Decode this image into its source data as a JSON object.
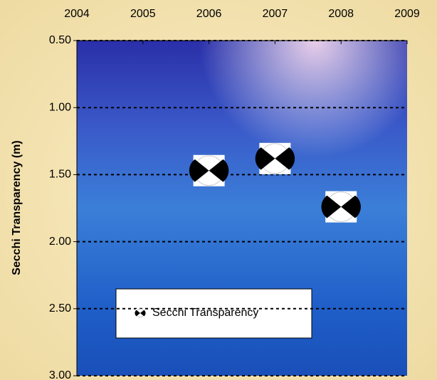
{
  "chart_data": {
    "type": "scatter",
    "y_label": "Secchi Transparency (m)",
    "series": [
      {
        "name": "Secchi Transparency",
        "color": "#000000",
        "x": [
          2006,
          2007,
          2008
        ],
        "values": [
          1.47,
          1.38,
          1.74
        ]
      }
    ],
    "xlim": [
      2004,
      2009
    ],
    "xticks": [
      2004,
      2005,
      2006,
      2007,
      2008,
      2009
    ],
    "x_axis_position": "top",
    "ylim": [
      0.5,
      3.0
    ],
    "y_inverted": true,
    "yticks": [
      {
        "value": 0.5,
        "label": "0.50"
      },
      {
        "value": 1.0,
        "label": "1.00"
      },
      {
        "value": 1.5,
        "label": "1.50"
      },
      {
        "value": 2.0,
        "label": "2.00"
      },
      {
        "value": 2.5,
        "label": "2.50"
      },
      {
        "value": 3.0,
        "label": "3.00"
      }
    ],
    "grid": true
  }
}
